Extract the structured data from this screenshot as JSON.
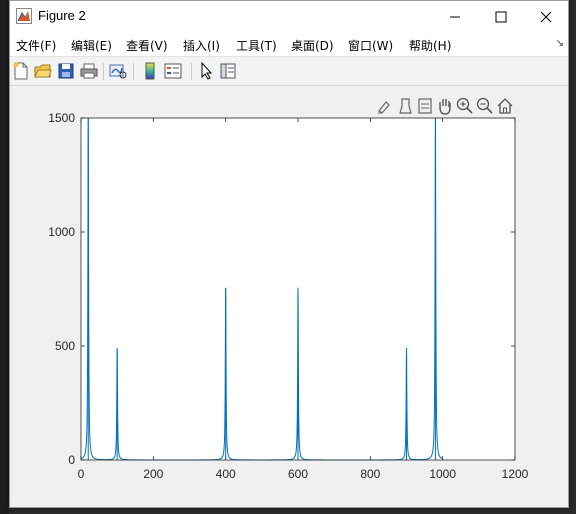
{
  "window": {
    "title": "Figure 2"
  },
  "menu": {
    "items": [
      {
        "label": "文件(F)"
      },
      {
        "label": "编辑(E)"
      },
      {
        "label": "查看(V)"
      },
      {
        "label": "插入(I)"
      },
      {
        "label": "工具(T)"
      },
      {
        "label": "桌面(D)"
      },
      {
        "label": "窗口(W)"
      },
      {
        "label": "帮助(H)"
      }
    ]
  },
  "toolbar": {
    "icons": [
      "new-figure-icon",
      "open-file-icon",
      "save-icon",
      "print-icon",
      "link-plot-icon",
      "colorbar-icon",
      "legend-icon",
      "pointer-icon",
      "property-inspector-icon"
    ]
  },
  "axes_toolbar": {
    "icons": [
      "brush-data-icon",
      "data-tips-icon",
      "export-icon",
      "pan-hand-icon",
      "zoom-in-icon",
      "zoom-out-icon",
      "home-icon"
    ]
  },
  "colors": {
    "line": "#0072BD",
    "axis": "#262626"
  },
  "chart_data": {
    "type": "line",
    "title": "",
    "xlabel": "",
    "ylabel": "",
    "xlim": [
      0,
      1200
    ],
    "ylim": [
      0,
      1500
    ],
    "xticks": [
      0,
      200,
      400,
      600,
      800,
      1000,
      1200
    ],
    "yticks": [
      0,
      500,
      1000,
      1500
    ],
    "xtick_labels": [
      "0",
      "200",
      "400",
      "600",
      "800",
      "1000",
      "1200"
    ],
    "ytick_labels": [
      "0",
      "500",
      "1000",
      "1500"
    ],
    "grid": false,
    "x_extent": [
      0,
      1000
    ],
    "peaks": [
      {
        "x": 20,
        "y": 1500
      },
      {
        "x": 100,
        "y": 490
      },
      {
        "x": 400,
        "y": 755
      },
      {
        "x": 600,
        "y": 755
      },
      {
        "x": 900,
        "y": 490
      },
      {
        "x": 980,
        "y": 1500
      }
    ]
  }
}
